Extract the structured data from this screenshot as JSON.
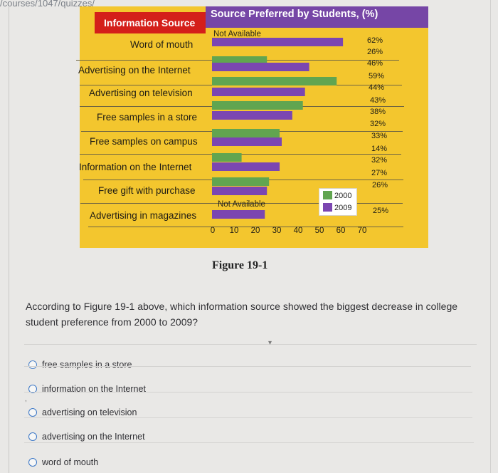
{
  "address": "/courses/1047/quizzes/",
  "header": {
    "left_title": "Information Source",
    "right_title": "Source Preferred by Students, (%)"
  },
  "chart_data": {
    "type": "bar",
    "orientation": "horizontal",
    "categories": [
      "Word of mouth",
      "Advertising on the Internet",
      "Advertising on television",
      "Free samples in a store",
      "Free samples on campus",
      "Information on the Internet",
      "Free gift with purchase",
      "Advertising in magazines"
    ],
    "series": [
      {
        "name": "2000",
        "color": "#61a550",
        "values": [
          null,
          26,
          59,
          43,
          32,
          14,
          27,
          null
        ]
      },
      {
        "name": "2009",
        "color": "#7b46b1",
        "values": [
          62,
          46,
          44,
          38,
          33,
          32,
          26,
          25
        ]
      }
    ],
    "data_labels": [
      "62%",
      "26%",
      "46%",
      "59%",
      "44%",
      "43%",
      "38%",
      "32%",
      "33%",
      "14%",
      "32%",
      "27%",
      "26%",
      "25%"
    ],
    "not_available": {
      "top": "Not Available",
      "bottom": "Not Available"
    },
    "x_ticks": [
      "0",
      "10",
      "20",
      "30",
      "40",
      "50",
      "60",
      "70"
    ],
    "xlim": [
      0,
      70
    ],
    "legend": [
      {
        "label": "2000",
        "color": "#61a550"
      },
      {
        "label": "2009",
        "color": "#7b46b1"
      }
    ],
    "legend_position": "bottom-right"
  },
  "figure_caption": "Figure 19-1",
  "question": "According to Figure 19-1 above, which information source showed the biggest decrease in college student preference from 2000 to 2009?",
  "options": [
    "free samples in a store",
    "information on the Internet",
    "advertising on television",
    "advertising on the Internet",
    "word of mouth"
  ]
}
